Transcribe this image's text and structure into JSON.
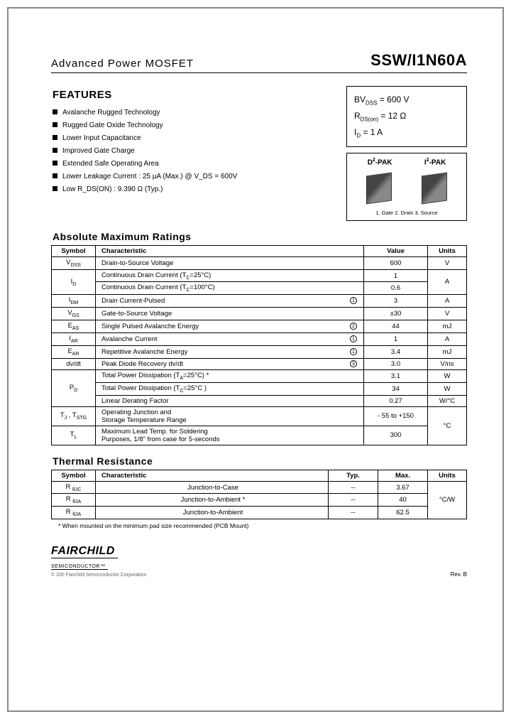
{
  "header": {
    "left": "Advanced Power MOSFET",
    "right": "SSW/I1N60A"
  },
  "features": {
    "title": "FEATURES",
    "items": [
      "Avalanche Rugged Technology",
      "Rugged Gate Oxide Technology",
      "Lower Input Capacitance",
      "Improved Gate Charge",
      "Extended Safe Operating Area",
      "Lower Leakage Current : 25 µA (Max.) @ V_DS = 600V",
      "Low R_DS(ON) : 9.390 Ω (Typ.)"
    ]
  },
  "spec_box": {
    "bv_label": "BV",
    "bv_sub": "DSS",
    "bv_val": " = 600 V",
    "rds_label": "R",
    "rds_sub": "DS(on)",
    "rds_val": " = 12 Ω",
    "id_label": "I",
    "id_sub": "D",
    "id_val": " = 1 A"
  },
  "pkg_box": {
    "p1": "D",
    "p1s": "2",
    "p1t": "-PAK",
    "p2": "I",
    "p2s": "2",
    "p2t": "-PAK",
    "pins": "1. Gate  2. Drain  3. Source"
  },
  "abs_max": {
    "title": "Absolute Maximum Ratings",
    "cols": [
      "Symbol",
      "Characteristic",
      "Value",
      "Units"
    ],
    "rows": [
      {
        "sym": "V<sub>DSS</sub>",
        "char": "Drain-to-Source Voltage",
        "val": "600",
        "unit": "V"
      },
      {
        "sym": "I<sub>D</sub>",
        "char": "Continuous Drain Current (T<sub>C</sub>=25°C)",
        "val": "1",
        "unit": "A",
        "rowspan_sym": 2,
        "rowspan_unit": 2
      },
      {
        "char": "Continuous Drain Current (T<sub>C</sub>=100°C)",
        "val": "0.6"
      },
      {
        "sym": "I<sub>DM</sub>",
        "char": "Drain Current-Pulsed",
        "circ": "1",
        "val": "3",
        "unit": "A"
      },
      {
        "sym": "V<sub>GS</sub>",
        "char": "Gate-to-Source Voltage",
        "val": "±30",
        "unit": "V"
      },
      {
        "sym": "E<sub>AS</sub>",
        "char": "Single Pulsed Avalanche Energy",
        "circ": "2",
        "val": "44",
        "unit": "mJ"
      },
      {
        "sym": "I<sub>AR</sub>",
        "char": "Avalanche Current",
        "circ": "1",
        "val": "1",
        "unit": "A"
      },
      {
        "sym": "E<sub>AR</sub>",
        "char": "Repetitive Avalanche Energy",
        "circ": "1",
        "val": "3.4",
        "unit": "mJ"
      },
      {
        "sym": "dv/dt",
        "char": "Peak Diode Recovery dv/dt",
        "circ": "3",
        "val": "3.0",
        "unit": "V/ns"
      },
      {
        "sym": "P<sub>D</sub>",
        "char": "Total Power Dissipation (T<sub>A</sub>=25°C) *",
        "val": "3.1",
        "unit": "W",
        "rowspan_sym": 3
      },
      {
        "char": "Total Power Dissipation (T<sub>C</sub>=25°C )",
        "val": "34",
        "unit": "W"
      },
      {
        "char": "Linear Derating Factor",
        "val": "0.27",
        "unit": "W/°C"
      },
      {
        "sym": "T<sub>J</sub> , T<sub>STG</sub>",
        "char": "Operating Junction and<br>Storage Temperature Range",
        "val": "- 55 to +150",
        "unit": "°C",
        "rowspan_unit": 2
      },
      {
        "sym": "T<sub>L</sub>",
        "char": "Maximum Lead Temp. for Soldering<br>Purposes, 1/8\" from case for 5-seconds",
        "val": "300"
      }
    ]
  },
  "thermal": {
    "title": "Thermal Resistance",
    "cols": [
      "Symbol",
      "Characteristic",
      "Typ.",
      "Max.",
      "Units"
    ],
    "rows": [
      {
        "sym": "R <sub>θJC</sub>",
        "char": "Junction-to-Case",
        "typ": "--",
        "max": "3.67"
      },
      {
        "sym": "R <sub>θJA</sub>",
        "char": "Junction-to-Ambient *",
        "typ": "--",
        "max": "40"
      },
      {
        "sym": "R <sub>θJA</sub>",
        "char": "Junction-to-Ambient",
        "typ": "--",
        "max": "62.5"
      }
    ],
    "unit": "°C/W"
  },
  "footnote": "* When mounted on the minimum pad size recommended (PCB Mount)",
  "footer": {
    "logo": "FAIRCHILD",
    "logo_sub": "SEMICONDUCTOR™",
    "copy": "© 200 Fairchild Semiconductor Corporation",
    "rev": "Rev. B"
  }
}
